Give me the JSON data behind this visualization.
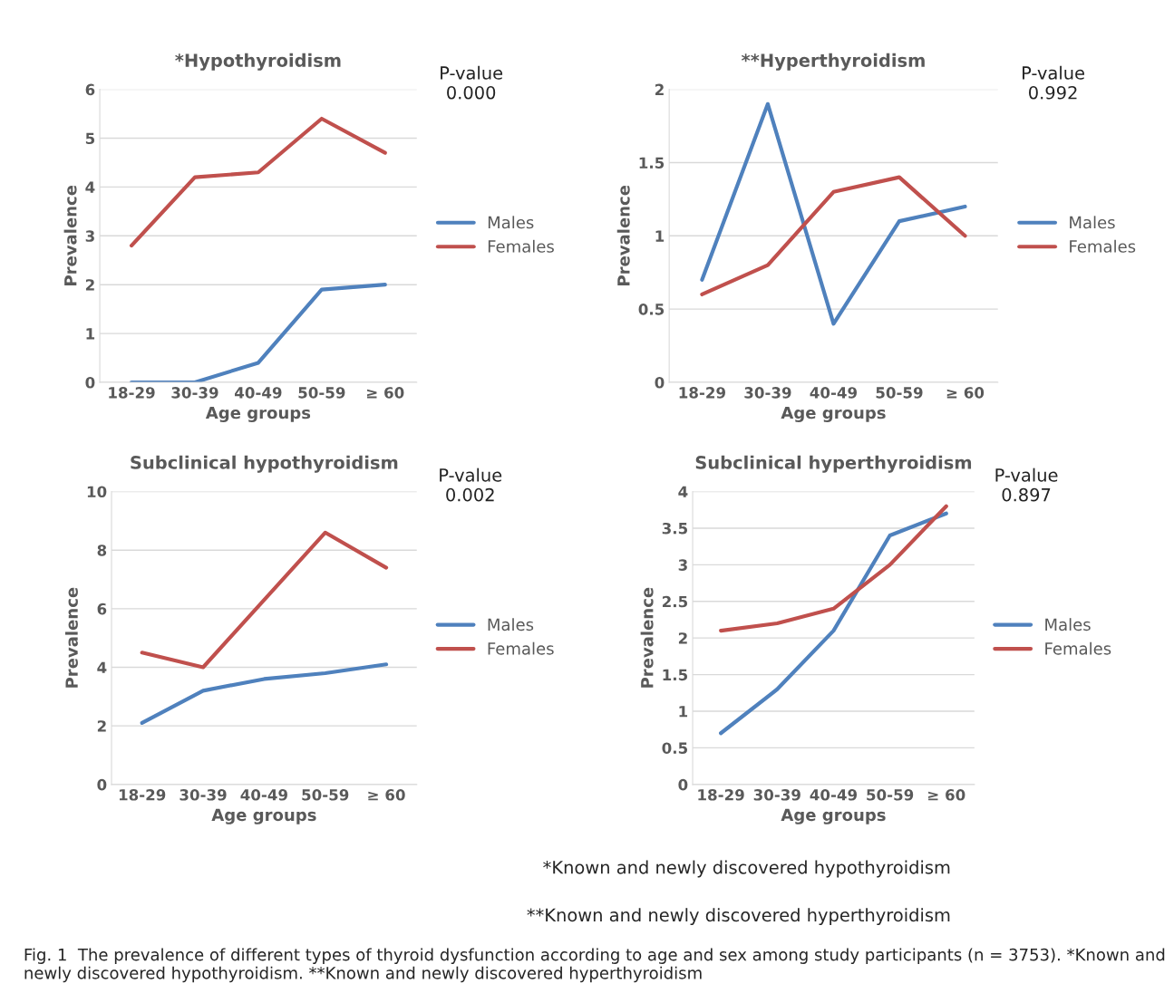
{
  "chart_data": [
    {
      "type": "line",
      "title": "*Hypothyroidism",
      "xlabel": "Age groups",
      "ylabel": "Prevalence",
      "categories": [
        "18-29",
        "30-39",
        "40-49",
        "50-59",
        "≥ 60"
      ],
      "ylim": [
        0,
        6
      ],
      "yticks": [
        0,
        1,
        2,
        3,
        4,
        5,
        6
      ],
      "grid": "y",
      "legend": "right",
      "marker": "none",
      "line_style": "solid",
      "series": [
        {
          "name": "Males",
          "color": "#4f81bd",
          "values": [
            0,
            0,
            0.4,
            1.9,
            2
          ]
        },
        {
          "name": "Females",
          "color": "#c0504d",
          "values": [
            2.8,
            4.2,
            4.3,
            5.4,
            4.7
          ]
        }
      ],
      "annotations": [
        "P-value\n0.000"
      ]
    },
    {
      "type": "line",
      "title": "**Hyperthyroidism",
      "xlabel": "Age groups",
      "ylabel": "Prevalence",
      "categories": [
        "18-29",
        "30-39",
        "40-49",
        "50-59",
        "≥ 60"
      ],
      "ylim": [
        0,
        2
      ],
      "yticks": [
        0,
        0.5,
        1,
        1.5,
        2
      ],
      "grid": "y",
      "legend": "right",
      "marker": "none",
      "line_style": "solid",
      "series": [
        {
          "name": "Males",
          "color": "#4f81bd",
          "values": [
            0.7,
            1.9,
            0.4,
            1.1,
            1.2
          ]
        },
        {
          "name": "Females",
          "color": "#c0504d",
          "values": [
            0.6,
            0.8,
            1.3,
            1.4,
            1.0
          ]
        }
      ],
      "annotations": [
        "P-value\n0.992"
      ]
    },
    {
      "type": "line",
      "title": "Subclinical hypothyroidism",
      "xlabel": "Age groups",
      "ylabel": "Prevalence",
      "categories": [
        "18-29",
        "30-39",
        "40-49",
        "50-59",
        "≥ 60"
      ],
      "ylim": [
        0,
        10
      ],
      "yticks": [
        0,
        2,
        4,
        6,
        8,
        10
      ],
      "grid": "y",
      "legend": "right",
      "marker": "none",
      "line_style": "solid",
      "series": [
        {
          "name": "Males",
          "color": "#4f81bd",
          "values": [
            2.1,
            3.2,
            3.6,
            3.8,
            4.1
          ]
        },
        {
          "name": "Females",
          "color": "#c0504d",
          "values": [
            4.5,
            4.0,
            6.3,
            8.6,
            7.4
          ]
        }
      ],
      "annotations": [
        "P-value\n0.002"
      ]
    },
    {
      "type": "line",
      "title": "Subclinical hyperthyroidism",
      "xlabel": "Age groups",
      "ylabel": "Prevalence",
      "categories": [
        "18-29",
        "30-39",
        "40-49",
        "50-59",
        "≥ 60"
      ],
      "ylim": [
        0,
        4
      ],
      "yticks": [
        0,
        0.5,
        1,
        1.5,
        2,
        2.5,
        3,
        3.5,
        4
      ],
      "grid": "y",
      "legend": "right",
      "marker": "none",
      "line_style": "solid",
      "series": [
        {
          "name": "Males",
          "color": "#4f81bd",
          "values": [
            0.7,
            1.3,
            2.1,
            3.4,
            3.7
          ]
        },
        {
          "name": "Females",
          "color": "#c0504d",
          "values": [
            2.1,
            2.2,
            2.4,
            3.0,
            3.8
          ]
        }
      ],
      "annotations": [
        "P-value\n0.897",
        "*Known and newly discovered hypothyroidism",
        "**Known and newly discovered hyperthyroidism",
        "Fig. 1  The prevalence of different types of thyroid dysfunction according to age and sex among study participants (n = 3753). *Known and newly discovered hypothyroidism. **Known and newly discovered hyperthyroidism"
      ]
    }
  ]
}
